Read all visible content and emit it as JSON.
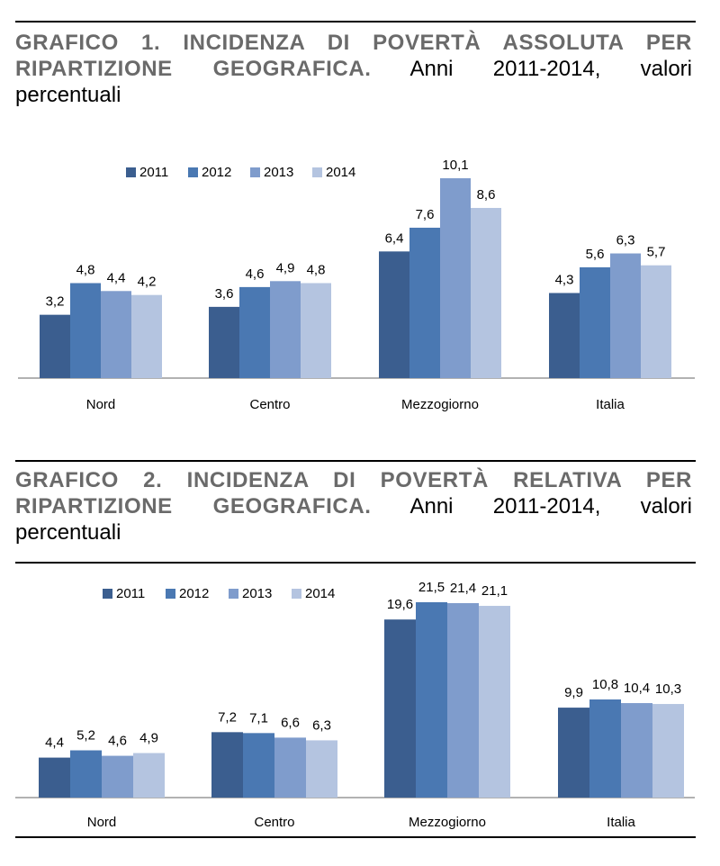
{
  "colors": {
    "s2011": "#3b5e8f",
    "s2012": "#4a78b2",
    "s2013": "#7f9ccc",
    "s2014": "#b4c4e0",
    "axis": "#999999"
  },
  "chart_data": [
    {
      "type": "bar",
      "title_bold_line1": "GRAFICO 1. INCIDENZA DI POVERTÀ ASSOLUTA PER",
      "title_bold_line2": "RIPARTIZIONE GEOGRAFICA.",
      "title_rest_line2": "Anni 2011-2014, valori",
      "title_line3": "percentuali",
      "categories": [
        "Nord",
        "Centro",
        "Mezzogiorno",
        "Italia"
      ],
      "series": [
        {
          "name": "2011",
          "values": [
            3.2,
            3.6,
            6.4,
            4.3
          ],
          "labels": [
            "3,2",
            "3,6",
            "6,4",
            "4,3"
          ]
        },
        {
          "name": "2012",
          "values": [
            4.8,
            4.6,
            7.6,
            5.6
          ],
          "labels": [
            "4,8",
            "4,6",
            "7,6",
            "5,6"
          ]
        },
        {
          "name": "2013",
          "values": [
            4.4,
            4.9,
            10.1,
            6.3
          ],
          "labels": [
            "4,4",
            "4,9",
            "10,1",
            "6,3"
          ]
        },
        {
          "name": "2014",
          "values": [
            4.2,
            4.8,
            8.6,
            5.7
          ],
          "labels": [
            "4,2",
            "4,8",
            "8,6",
            "5,7"
          ]
        }
      ],
      "ylim": [
        0,
        10.1
      ],
      "legend": "top-left"
    },
    {
      "type": "bar",
      "title_bold_line1": "GRAFICO 2. INCIDENZA DI POVERTÀ RELATIVA PER",
      "title_bold_line2": "RIPARTIZIONE GEOGRAFICA.",
      "title_rest_line2": "Anni 2011-2014, valori",
      "title_line3": "percentuali",
      "categories": [
        "Nord",
        "Centro",
        "Mezzogiorno",
        "Italia"
      ],
      "series": [
        {
          "name": "2011",
          "values": [
            4.4,
            7.2,
            19.6,
            9.9
          ],
          "labels": [
            "4,4",
            "7,2",
            "19,6",
            "9,9"
          ]
        },
        {
          "name": "2012",
          "values": [
            5.2,
            7.1,
            21.5,
            10.8
          ],
          "labels": [
            "5,2",
            "7,1",
            "21,5",
            "10,8"
          ]
        },
        {
          "name": "2013",
          "values": [
            4.6,
            6.6,
            21.4,
            10.4
          ],
          "labels": [
            "4,6",
            "6,6",
            "21,4",
            "10,4"
          ]
        },
        {
          "name": "2014",
          "values": [
            4.9,
            6.3,
            21.1,
            10.3
          ],
          "labels": [
            "4,9",
            "6,3",
            "21,1",
            "10,3"
          ]
        }
      ],
      "ylim": [
        0,
        21.5
      ],
      "legend": "top-left"
    }
  ]
}
